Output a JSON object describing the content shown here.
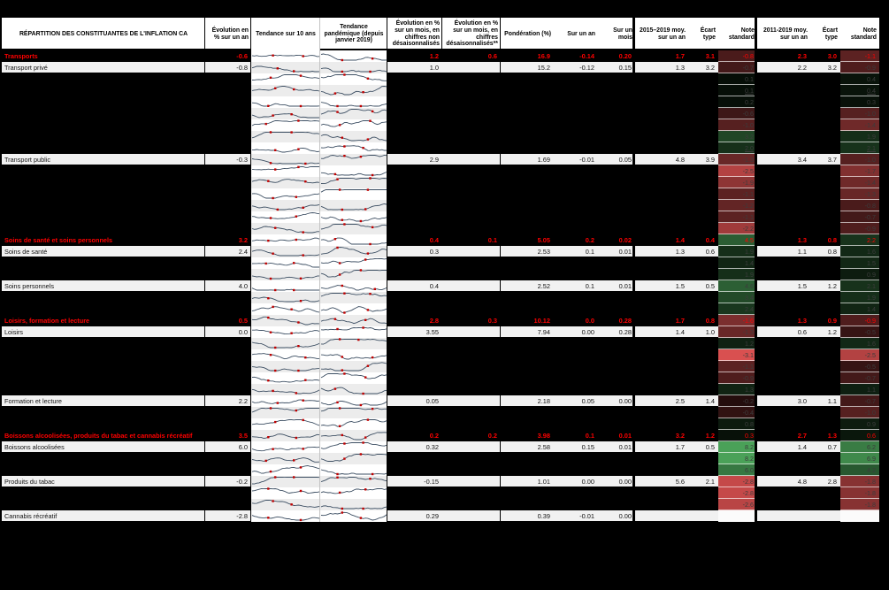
{
  "colors": {
    "category_text": "#ff0000",
    "positive_scale": "#4ca65b",
    "negative_scale": "#eb5757",
    "spark_line": "#3d4f63",
    "spark_marker": "#c00000",
    "row_bg": "#f1f1f1"
  },
  "chart_data": {
    "type": "table",
    "title": "RÉPARTITION DES CONSTITUANTES DE L'INFLATION CA",
    "columns": [
      "RÉPARTITION DES CONSTITUANTES DE L'INFLATION CA",
      "Évolution en % sur un an",
      "Tendance sur 10 ans",
      "Tendance pandémique (depuis janvier 2019)",
      "Évolution en % sur un mois, en chiffres non désaisonnalisés",
      "Évolution en % sur un mois, en chiffres désaisonnalisés**",
      "Pondération (%)",
      "Sur un an",
      "Sur un mois",
      "2015–2019 moy. sur un an",
      "Écart type",
      "Note standard",
      "2011-2019 moy. sur un an",
      "Écart type",
      "Note standard"
    ],
    "rows": [
      {
        "t": "cat",
        "label": "Transports",
        "evo": "-0.6",
        "m1": "1.2",
        "m2": "0.6",
        "pond": "16.9",
        "an": "-0.14",
        "mois": "0.20",
        "a15": "1.7",
        "e15": "3.1",
        "n15": "-0.8",
        "a11": "2.3",
        "e11": "3.0",
        "n11": "-1.1"
      },
      {
        "t": "item",
        "label": "Transport privé",
        "evo": "-0.8",
        "m1": "1.0",
        "pond": "15.2",
        "an": "-0.12",
        "mois": "0.15",
        "a15": "1.3",
        "e15": "3.2",
        "n15": "-0.7",
        "a11": "2.2",
        "e11": "3.2",
        "n11": "-0.9"
      },
      {
        "t": "hid",
        "n15": "0.1",
        "n11": "0.4"
      },
      {
        "t": "hid",
        "n15": "0.1",
        "n11": "0.4",
        "u": true
      },
      {
        "t": "hid",
        "n15": "0.2",
        "n11": "0.3"
      },
      {
        "t": "hid",
        "n15": "-0.6",
        "n11": "-1.0"
      },
      {
        "t": "hid",
        "n15": "-1.0",
        "n11": "-1.4"
      },
      {
        "t": "hid",
        "n15": "3.2",
        "n11": "1.9"
      },
      {
        "t": "hid",
        "n15": "2.0",
        "n11": "2.1",
        "u": true
      },
      {
        "t": "item",
        "label": "Transport public",
        "evo": "-0.3",
        "m1": "2.9",
        "pond": "1.69",
        "an": "-0.01",
        "mois": "0.05",
        "a15": "4.8",
        "e15": "3.9",
        "n15": "-1.3",
        "a11": "3.4",
        "e11": "3.7",
        "n11": "-1.0"
      },
      {
        "t": "hid",
        "n15": "-2.5",
        "n11": "-1.7"
      },
      {
        "t": "hid",
        "n15": "-1.9",
        "n11": "-1.4"
      },
      {
        "t": "hid",
        "n15": "-1.1",
        "n11": "-1.3"
      },
      {
        "t": "hid",
        "n15": "-1.2",
        "n11": "-0.8"
      },
      {
        "t": "hid",
        "n15": "-1.1",
        "n11": "-0.7"
      },
      {
        "t": "hid",
        "n15": "-2.2",
        "n11": "-0.9"
      },
      {
        "t": "cat",
        "label": "Soins de santé et soins personnels",
        "evo": "3.2",
        "m1": "0.4",
        "m2": "0.1",
        "pond": "5.05",
        "an": "0.2",
        "mois": "0.02",
        "a15": "1.4",
        "e15": "0.4",
        "n15": "4.5",
        "a11": "1.3",
        "e11": "0.8",
        "n11": "2.2"
      },
      {
        "t": "item",
        "label": "Soins de santé",
        "evo": "2.4",
        "m1": "0.3",
        "pond": "2.53",
        "an": "0.1",
        "mois": "0.01",
        "a15": "1.3",
        "e15": "0.6",
        "n15": "1.9",
        "a11": "1.1",
        "e11": "0.8",
        "n11": "1.6"
      },
      {
        "t": "hid",
        "n15": "1.4",
        "n11": "1.5"
      },
      {
        "t": "hid",
        "n15": "1.9",
        "n11": "0.9"
      },
      {
        "t": "item",
        "label": "Soins personnels",
        "evo": "4.0",
        "m1": "0.4",
        "pond": "2.52",
        "an": "0.1",
        "mois": "0.01",
        "a15": "1.5",
        "e15": "0.5",
        "n15": "4.6",
        "a11": "1.5",
        "e11": "1.2",
        "n11": "2.1"
      },
      {
        "t": "hid",
        "n15": "3.4",
        "n11": "1.9"
      },
      {
        "t": "hid",
        "n15": "2.4",
        "n11": "1.4"
      },
      {
        "t": "cat",
        "label": "Loisirs, formation et lecture",
        "evo": "0.5",
        "m1": "2.8",
        "m2": "0.3",
        "pond": "10.12",
        "an": "0.0",
        "mois": "0.28",
        "a15": "1.7",
        "e15": "0.8",
        "n15": "-1.6",
        "a11": "1.3",
        "e11": "0.9",
        "n11": "-0.9"
      },
      {
        "t": "item",
        "label": "Loisirs",
        "evo": "0.0",
        "m1": "3.55",
        "pond": "7.94",
        "an": "0.00",
        "mois": "0.28",
        "a15": "1.4",
        "e15": "1.0",
        "n15": "-1.3",
        "a11": "0.6",
        "e11": "1.2",
        "n11": "-0.5"
      },
      {
        "t": "hid",
        "n15": "1.2",
        "n11": "1.6"
      },
      {
        "t": "hid",
        "n15": "-3.1",
        "n11": "-2.5"
      },
      {
        "t": "hid",
        "n15": "-1.1",
        "n11": "-0.5"
      },
      {
        "t": "hid",
        "n15": "-0.9",
        "n11": "-0.7"
      },
      {
        "t": "hid",
        "n15": "1.3",
        "n11": "1.1"
      },
      {
        "t": "item",
        "label": "Formation et lecture",
        "evo": "2.2",
        "m1": "0.05",
        "pond": "2.18",
        "an": "0.05",
        "mois": "0.00",
        "a15": "2.5",
        "e15": "1.4",
        "n15": "-0.2",
        "a11": "3.0",
        "e11": "1.1",
        "n11": "-0.7"
      },
      {
        "t": "hid",
        "n15": "-0.4",
        "n11": "-1.0"
      },
      {
        "t": "hid",
        "n15": "0.8",
        "n11": "0.9"
      },
      {
        "t": "cat",
        "label": "Boissons alcoolisées, produits du tabac et cannabis récréatif",
        "evo": "3.5",
        "m1": "0.2",
        "m2": "0.2",
        "pond": "3.98",
        "an": "0.1",
        "mois": "0.01",
        "a15": "3.2",
        "e15": "1.2",
        "n15": "0.3",
        "a11": "2.7",
        "e11": "1.3",
        "n11": "0.6"
      },
      {
        "t": "item",
        "label": "Boissons alcoolisées",
        "evo": "6.0",
        "m1": "0.32",
        "pond": "2.58",
        "an": "0.15",
        "mois": "0.01",
        "a15": "1.7",
        "e15": "0.5",
        "n15": "8.2",
        "a11": "1.4",
        "e11": "0.7",
        "n11": "6.2"
      },
      {
        "t": "hid",
        "n15": "8.2",
        "n11": "6.9"
      },
      {
        "t": "hid",
        "n15": "6.0",
        "n11": "4.2"
      },
      {
        "t": "item",
        "label": "Produits du tabac",
        "evo": "-0.2",
        "m1": "-0.15",
        "pond": "1.01",
        "an": "0.00",
        "mois": "0.00",
        "a15": "5.6",
        "e15": "2.1",
        "n15": "-2.8",
        "a11": "4.8",
        "e11": "2.8",
        "n11": "-1.8"
      },
      {
        "t": "hid",
        "n15": "-2.8",
        "n11": "-1.8"
      },
      {
        "t": "hid",
        "n15": "-2.6",
        "n11": "-1.8"
      },
      {
        "t": "item",
        "label": "Cannabis récréatif",
        "evo": "-2.8",
        "m1": "0.29",
        "pond": "0.39",
        "an": "-0.01",
        "mois": "0.00"
      }
    ]
  }
}
